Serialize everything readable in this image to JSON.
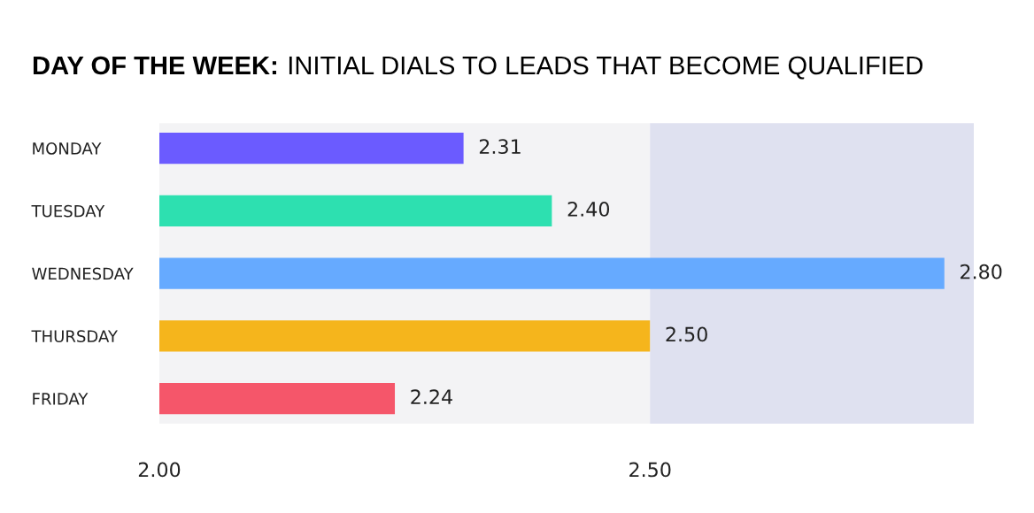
{
  "chart_data": {
    "type": "bar",
    "orientation": "horizontal",
    "title": "DAY OF THE WEEK: INITIAL DIALS TO LEADS THAT BECOME QUALIFIED",
    "categories": [
      "MONDAY",
      "TUESDAY",
      "WEDNESDAY",
      "THURSDAY",
      "FRIDAY"
    ],
    "values": [
      2.31,
      2.4,
      2.8,
      2.5,
      2.24
    ],
    "value_labels": [
      "2.31",
      "2.40",
      "2.80",
      "2.50",
      "2.24"
    ],
    "colors": [
      "#6b5bff",
      "#2de0b0",
      "#66aaff",
      "#f5b51c",
      "#f5566a"
    ],
    "xlim": [
      2.0,
      2.83
    ],
    "xticks": [
      {
        "value": 2.0,
        "label": "2.00"
      },
      {
        "value": 2.5,
        "label": "2.50"
      }
    ],
    "bands": [
      {
        "axis": "x",
        "from": 2.0,
        "to": 2.5,
        "color": "#f3f3f5"
      },
      {
        "axis": "x",
        "from": 2.5,
        "to": 2.83,
        "color": "#dfe1f0"
      }
    ],
    "grid": false
  }
}
